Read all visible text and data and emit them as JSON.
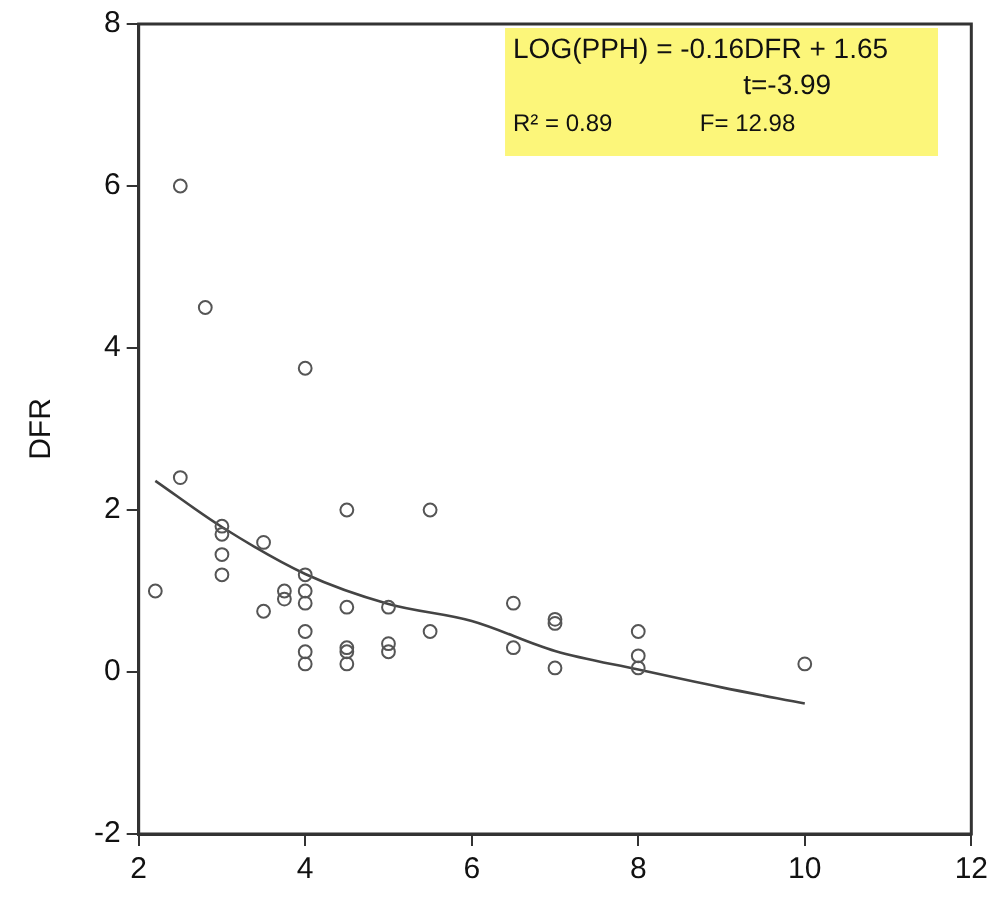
{
  "chart_data": {
    "type": "scatter",
    "ylabel": "DFR",
    "xlim": [
      2,
      12
    ],
    "xticks": [
      2,
      4,
      6,
      8,
      10,
      12
    ],
    "ylim": [
      -2,
      8
    ],
    "yticks": [
      -2,
      0,
      2,
      4,
      6,
      8
    ],
    "grid": false,
    "legend": false,
    "marker": "circle",
    "annotations": [
      "LOG(PPH) = -0.16DFR + 1.65",
      "t=-3.99",
      "R² = 0.89",
      "F= 12.98"
    ],
    "series": [
      {
        "color": "#555555",
        "x": [
          2.5,
          2.8,
          4,
          2.5,
          4.5,
          5.5,
          3,
          3,
          3.5,
          3,
          3,
          2.2,
          3.75,
          3.75,
          3.5,
          4,
          4,
          4,
          4,
          4,
          4,
          4.5,
          4.5,
          4.5,
          4.5,
          5,
          5,
          5,
          5.5,
          6.5,
          6.5,
          7,
          7,
          7,
          8,
          8,
          8,
          10
        ],
        "values": [
          6.0,
          4.5,
          3.75,
          2.4,
          2.0,
          2.0,
          1.8,
          1.7,
          1.6,
          1.45,
          1.2,
          1.0,
          1.0,
          0.9,
          0.75,
          1.2,
          1.0,
          0.85,
          0.5,
          0.25,
          0.1,
          0.8,
          0.3,
          0.25,
          0.1,
          0.8,
          0.35,
          0.25,
          0.5,
          0.85,
          0.3,
          0.65,
          0.6,
          0.05,
          0.5,
          0.2,
          0.05,
          0.1
        ]
      },
      {
        "type": "line",
        "color": "#444444",
        "marker": "none",
        "x": [
          2.2,
          3,
          4,
          5,
          6,
          7,
          8,
          9,
          10
        ],
        "values": [
          2.36,
          1.79,
          1.21,
          0.84,
          0.63,
          0.26,
          0.03,
          -0.19,
          -0.39
        ]
      }
    ]
  }
}
